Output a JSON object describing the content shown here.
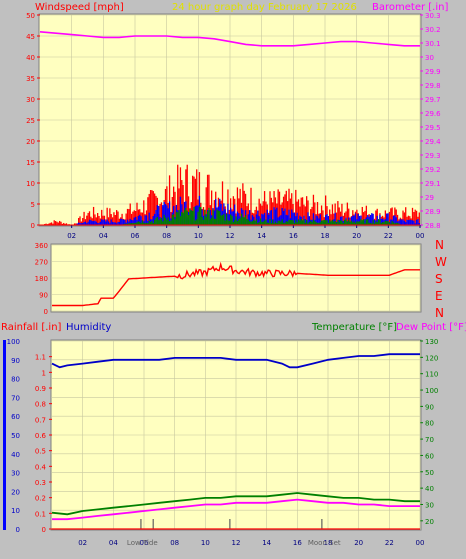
{
  "header": {
    "left_title": "Windspeed [mph]",
    "center_title": "24 hour graph day   February 17 2026",
    "right_title": "Barometer [.in]"
  },
  "colors": {
    "windspeed": "#ff0000",
    "gust_avg": "#0000ff",
    "wind_low": "#008000",
    "barometer": "#ff00ff",
    "direction": "#ff0000",
    "rainfall": "#ff0000",
    "humidity": "#0000c8",
    "temperature": "#008000",
    "dewpoint": "#ff00ff",
    "plot_bg": "#ffffc0",
    "window_bg": "#c0c0c0"
  },
  "chart_data": [
    {
      "type": "line",
      "title": "Windspeed [mph] / Barometer [.in]",
      "ylabel": "Windspeed [mph]",
      "ylim": [
        0,
        50
      ],
      "y_ticks": [
        "0",
        "5",
        "10",
        "15",
        "20",
        "25",
        "30",
        "35",
        "40",
        "45",
        "50"
      ],
      "y2label": "Barometer [.in]",
      "y2lim": [
        28.8,
        30.3
      ],
      "y2_ticks": [
        "28.8",
        "28.9",
        "29",
        "29.1",
        "29.2",
        "29.3",
        "29.4",
        "29.5",
        "29.6",
        "29.7",
        "29.8",
        "29.9",
        "30",
        "30.1",
        "30.2",
        "30.3"
      ],
      "x_ticks": [
        "02",
        "04",
        "06",
        "08",
        "10",
        "12",
        "14",
        "16",
        "18",
        "20",
        "22",
        "00"
      ],
      "x_range": [
        0,
        24
      ],
      "series": [
        {
          "name": "Barometer",
          "axis": "right",
          "x": [
            0,
            1,
            2,
            3,
            4,
            5,
            6,
            7,
            8,
            9,
            10,
            11,
            12,
            13,
            14,
            15,
            16,
            17,
            18,
            19,
            20,
            21,
            22,
            23,
            24
          ],
          "values": [
            30.18,
            30.17,
            30.16,
            30.15,
            30.14,
            30.14,
            30.15,
            30.15,
            30.15,
            30.14,
            30.14,
            30.13,
            30.11,
            30.09,
            30.08,
            30.08,
            30.08,
            30.09,
            30.1,
            30.11,
            30.11,
            30.1,
            30.09,
            30.08,
            30.08
          ]
        }
      ],
      "wind_envelope": {
        "x": [
          0,
          1,
          2,
          3,
          4,
          5,
          6,
          7,
          8,
          9,
          10,
          11,
          12,
          13,
          14,
          15,
          16,
          17,
          18,
          19,
          20,
          21,
          22,
          23,
          24
        ],
        "gust": [
          0,
          1,
          0,
          3,
          3,
          3,
          4,
          6,
          8,
          11,
          10,
          9,
          8,
          7,
          6,
          6,
          6,
          5,
          5,
          4,
          4,
          3,
          3,
          3,
          3
        ],
        "average": [
          0,
          0,
          0,
          1,
          1,
          1,
          2,
          3,
          4,
          5,
          5,
          5,
          4,
          3,
          3,
          3,
          3,
          2,
          2,
          2,
          2,
          2,
          2,
          1,
          1
        ],
        "low": [
          0,
          0,
          0,
          0,
          0,
          0,
          1,
          1,
          2,
          3,
          3,
          3,
          2,
          2,
          1,
          1,
          1,
          1,
          1,
          1,
          1,
          1,
          1,
          0,
          0
        ]
      }
    },
    {
      "type": "line",
      "title": "Wind direction",
      "ylim": [
        0,
        360
      ],
      "y_ticks": [
        "0",
        "90",
        "180",
        "270",
        "360"
      ],
      "compass_labels": [
        "N",
        "W",
        "S",
        "E",
        "N"
      ],
      "x_range": [
        0,
        24
      ],
      "series": [
        {
          "name": "Direction",
          "x": [
            0,
            1,
            2,
            3,
            3.2,
            4,
            4.3,
            5,
            6,
            7,
            8,
            9,
            10,
            11,
            12,
            13,
            14,
            15,
            16,
            17,
            18,
            19,
            20,
            21,
            22,
            23,
            24
          ],
          "values": [
            30,
            30,
            30,
            40,
            70,
            70,
            100,
            175,
            180,
            185,
            190,
            200,
            210,
            240,
            220,
            210,
            205,
            205,
            205,
            200,
            195,
            195,
            195,
            195,
            195,
            225,
            225
          ]
        }
      ]
    },
    {
      "type": "line",
      "title": "Rainfall / Humidity / Temperature / Dew Point",
      "labels_top": [
        "Rainfall [.in]",
        "Humidity",
        "Temperature [°F]",
        "Dew Point [°F]"
      ],
      "left_axis": {
        "ticks": [
          "0",
          "0.1",
          "0.2",
          "0.3",
          "0.4",
          "0.5",
          "0.6",
          "0.7",
          "0.8",
          "0.9",
          "1",
          "1.1"
        ],
        "lim": [
          0,
          1.2
        ]
      },
      "left_axis2": {
        "ticks": [
          "0",
          "10",
          "20",
          "30",
          "40",
          "50",
          "60",
          "70",
          "80",
          "90",
          "100"
        ],
        "lim": [
          0,
          100
        ]
      },
      "right_axis": {
        "ticks": [
          "20",
          "30",
          "40",
          "50",
          "60",
          "70",
          "80",
          "90",
          "100",
          "110",
          "120",
          "130"
        ],
        "lim": [
          15,
          130
        ]
      },
      "x_ticks": [
        "02",
        "04",
        "06",
        "08",
        "10",
        "12",
        "14",
        "16",
        "18",
        "20",
        "22",
        "00"
      ],
      "annotations": [
        "Low Tide",
        "Moon Set"
      ],
      "x_range": [
        0,
        24
      ],
      "series": [
        {
          "name": "Humidity",
          "axis": "left2",
          "x": [
            0,
            0.5,
            1,
            2,
            3,
            4,
            5,
            6,
            7,
            8,
            9,
            10,
            11,
            12,
            13,
            14,
            15,
            15.5,
            16,
            17,
            18,
            19,
            20,
            21,
            22,
            23,
            24
          ],
          "values": [
            88,
            86,
            87,
            88,
            89,
            90,
            90,
            90,
            90,
            91,
            91,
            91,
            91,
            90,
            90,
            90,
            88,
            86,
            86,
            88,
            90,
            91,
            92,
            92,
            93,
            93,
            93
          ]
        },
        {
          "name": "Temperature",
          "axis": "right",
          "x": [
            0,
            1,
            2,
            3,
            4,
            5,
            6,
            7,
            8,
            9,
            10,
            11,
            12,
            13,
            14,
            15,
            16,
            17,
            18,
            19,
            20,
            21,
            22,
            23,
            24
          ],
          "values": [
            25,
            24,
            26,
            27,
            28,
            29,
            30,
            31,
            32,
            33,
            34,
            34,
            35,
            35,
            35,
            36,
            37,
            36,
            35,
            34,
            34,
            33,
            33,
            32,
            32
          ]
        },
        {
          "name": "Dew Point",
          "axis": "right",
          "x": [
            0,
            1,
            2,
            3,
            4,
            5,
            6,
            7,
            8,
            9,
            10,
            11,
            12,
            13,
            14,
            15,
            16,
            17,
            18,
            19,
            20,
            21,
            22,
            23,
            24
          ],
          "values": [
            21,
            21,
            22,
            23,
            24,
            25,
            26,
            27,
            28,
            29,
            30,
            30,
            31,
            31,
            31,
            32,
            33,
            32,
            31,
            31,
            30,
            30,
            29,
            29,
            29
          ]
        },
        {
          "name": "Rainfall",
          "axis": "left",
          "x": [
            0,
            24
          ],
          "values": [
            0,
            0
          ]
        }
      ]
    }
  ]
}
